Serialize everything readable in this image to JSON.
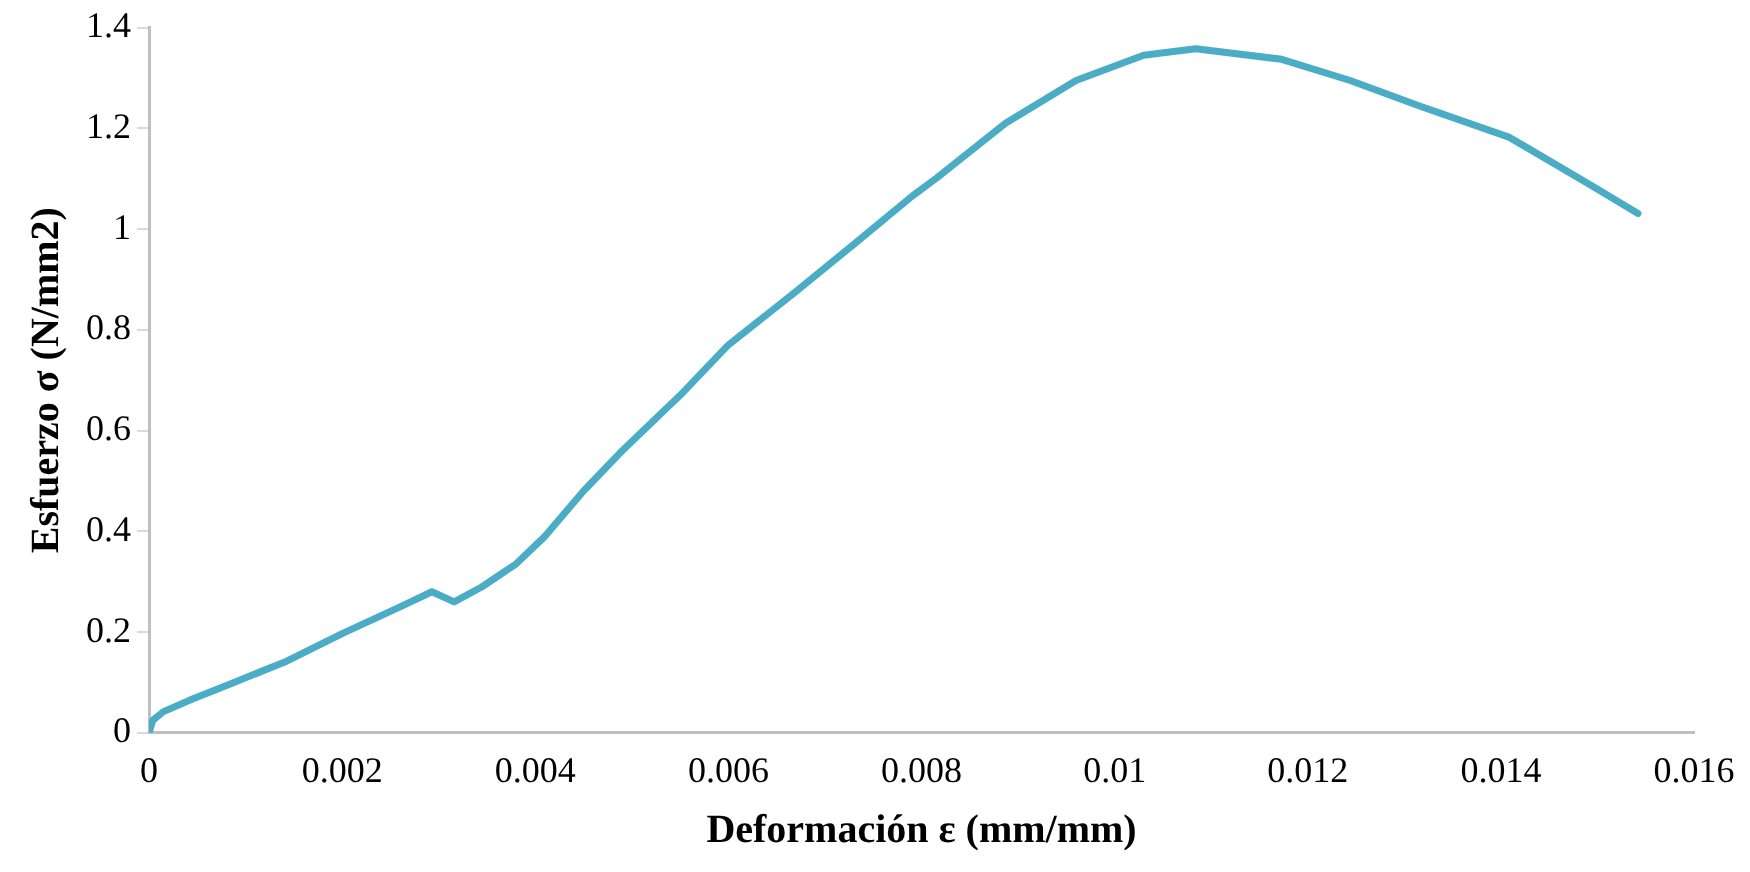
{
  "chart_data": {
    "type": "line",
    "xlabel": "Deformación ε (mm/mm)",
    "ylabel": "Esfuerzo σ (N/mm2)",
    "xlim": [
      0,
      0.016
    ],
    "xticks": [
      0,
      0.002,
      0.004,
      0.006,
      0.008,
      0.01,
      0.012,
      0.014,
      0.016
    ],
    "ylim": [
      0,
      1.4
    ],
    "yticks": [
      0,
      0.2,
      0.4,
      0.6,
      0.8,
      1,
      1.2,
      1.4
    ],
    "grid": false,
    "legend": false,
    "marker": "none",
    "line_style": "solid",
    "series": [
      {
        "color": "#4bacc6",
        "x": [
          0,
          4e-05,
          0.00015,
          0.00045,
          0.00088,
          0.0014,
          0.002,
          0.0026,
          0.00293,
          0.00316,
          0.00345,
          0.0038,
          0.0041,
          0.0045,
          0.0049,
          0.0055,
          0.006,
          0.0067,
          0.0073,
          0.0079,
          0.00816,
          0.00887,
          0.0096,
          0.0103,
          0.01084,
          0.01173,
          0.01244,
          0.01315,
          0.01409,
          0.01495,
          0.01542
        ],
        "values": [
          0,
          0.025,
          0.042,
          0.067,
          0.1,
          0.14,
          0.197,
          0.25,
          0.28,
          0.26,
          0.29,
          0.335,
          0.39,
          0.48,
          0.56,
          0.67,
          0.77,
          0.876,
          0.97,
          1.065,
          1.102,
          1.21,
          1.295,
          1.345,
          1.358,
          1.337,
          1.295,
          1.245,
          1.182,
          1.085,
          1.031
        ]
      }
    ]
  }
}
